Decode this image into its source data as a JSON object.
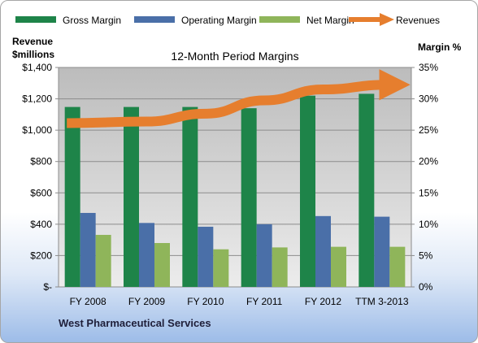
{
  "chart_data": {
    "type": "bar",
    "title": "12-Month Period Margins",
    "ylabel_left": [
      "Revenue",
      "$millions"
    ],
    "ylabel_right": "Margin %",
    "categories": [
      "FY 2008",
      "FY 2009",
      "FY 2010",
      "FY 2011",
      "FY 2012",
      "TTM 3-2013"
    ],
    "left_axis": {
      "ylim": [
        0,
        1400
      ],
      "ticks": [
        "$-",
        "$200",
        "$400",
        "$600",
        "$800",
        "$1,000",
        "$1,200",
        "$1,400"
      ],
      "tick_values": [
        0,
        200,
        400,
        600,
        800,
        1000,
        1200,
        1400
      ]
    },
    "right_axis": {
      "ylim": [
        0,
        35
      ],
      "ticks": [
        "0%",
        "5%",
        "10%",
        "15%",
        "20%",
        "25%",
        "30%",
        "35%"
      ],
      "tick_values": [
        0,
        5,
        10,
        15,
        20,
        25,
        30,
        35
      ]
    },
    "series": [
      {
        "name": "Gross Margin",
        "type": "bar",
        "axis": "right",
        "color": "#1e8449",
        "values": [
          28.7,
          28.7,
          28.7,
          28.5,
          30.5,
          30.8
        ]
      },
      {
        "name": "Operating Margin",
        "type": "bar",
        "axis": "right",
        "color": "#4a6fa8",
        "values": [
          11.8,
          10.2,
          9.6,
          10.0,
          11.3,
          11.2
        ]
      },
      {
        "name": "Net Margin",
        "type": "bar",
        "axis": "right",
        "color": "#8fb55a",
        "values": [
          8.3,
          7.0,
          6.0,
          6.3,
          6.4,
          6.4
        ]
      },
      {
        "name": "Revenues",
        "type": "line",
        "axis": "left",
        "color": "#e67e2e",
        "values": [
          1045,
          1055,
          1105,
          1190,
          1260,
          1290
        ]
      }
    ],
    "grid": true,
    "legend": "top"
  },
  "footer": "West Pharmaceutical Services"
}
